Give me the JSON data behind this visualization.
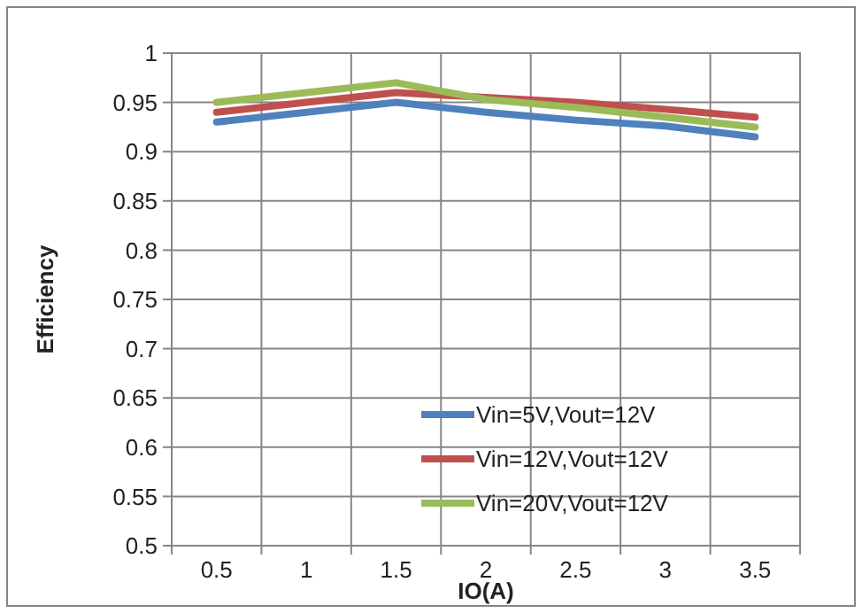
{
  "chart_data": {
    "type": "line",
    "xlabel": "IO(A)",
    "ylabel": "Efficiency",
    "categories": [
      "0.5",
      "1",
      "1.5",
      "2",
      "2.5",
      "3",
      "3.5"
    ],
    "series": [
      {
        "name": "Vin=5V,Vout=12V",
        "color": "#4f81bd",
        "values": [
          0.93,
          0.94,
          0.95,
          0.94,
          0.932,
          0.926,
          0.915
        ]
      },
      {
        "name": "Vin=12V,Vout=12V",
        "color": "#c0504d",
        "values": [
          0.94,
          0.95,
          0.96,
          0.955,
          0.95,
          0.943,
          0.935
        ]
      },
      {
        "name": "Vin=20V,Vout=12V",
        "color": "#9bbb59",
        "values": [
          0.95,
          0.96,
          0.97,
          0.953,
          0.945,
          0.935,
          0.925
        ]
      }
    ],
    "ylim": [
      0.5,
      1
    ],
    "yticks": [
      0.5,
      0.55,
      0.6,
      0.65,
      0.7,
      0.75,
      0.8,
      0.85,
      0.9,
      0.95,
      1
    ],
    "grid": true,
    "legend": "bottom right",
    "marker": "none",
    "line_style": "solid"
  }
}
